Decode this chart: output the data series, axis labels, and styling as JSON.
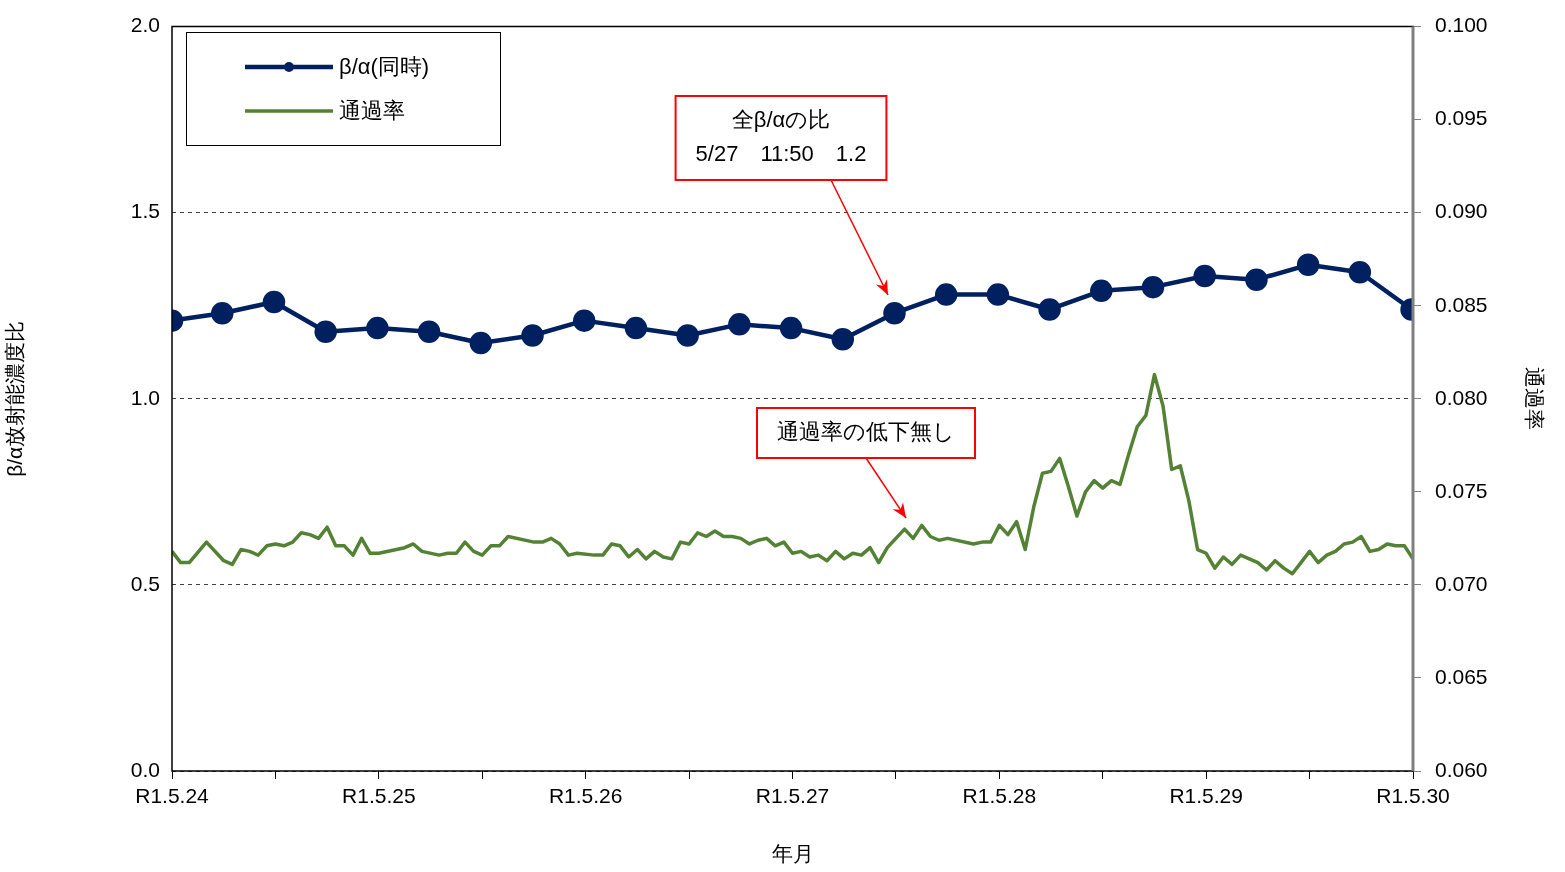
{
  "chart_data": {
    "type": "line",
    "xlabel": "年月",
    "ylabel": "β/α放射能濃度比",
    "y2label": "通過率",
    "xlim": [
      "--05-24T00:00",
      "--05-30T00:00"
    ],
    "xticks": [
      {
        "value": "--05-24T00:00",
        "label": "R1.5.24"
      },
      {
        "value": "--05-24T12:00",
        "label": null
      },
      {
        "value": "--05-25T00:00",
        "label": "R1.5.25"
      },
      {
        "value": "--05-25T12:00",
        "label": null
      },
      {
        "value": "--05-26T00:00",
        "label": "R1.5.26"
      },
      {
        "value": "--05-26T12:00",
        "label": null
      },
      {
        "value": "--05-27T00:00",
        "label": "R1.5.27"
      },
      {
        "value": "--05-27T12:00",
        "label": null
      },
      {
        "value": "--05-28T00:00",
        "label": "R1.5.28"
      },
      {
        "value": "--05-28T12:00",
        "label": null
      },
      {
        "value": "--05-29T00:00",
        "label": "R1.5.29"
      },
      {
        "value": "--05-29T12:00",
        "label": null
      },
      {
        "value": "--05-30T00:00",
        "label": "R1.5.30"
      }
    ],
    "ylim": [
      0,
      2
    ],
    "yticks": [
      {
        "value": 0,
        "label": "0.0"
      },
      {
        "value": 0.5,
        "label": "0.5"
      },
      {
        "value": 1,
        "label": "1.0"
      },
      {
        "value": 1.5,
        "label": "1.5"
      },
      {
        "value": 2,
        "label": "2.0"
      }
    ],
    "y2lim": [
      0.06,
      0.1
    ],
    "y2ticks": [
      {
        "value": 0.06,
        "label": "0.060"
      },
      {
        "value": 0.065,
        "label": "0.065"
      },
      {
        "value": 0.07,
        "label": "0.070"
      },
      {
        "value": 0.075,
        "label": "0.075"
      },
      {
        "value": 0.08,
        "label": "0.080"
      },
      {
        "value": 0.085,
        "label": "0.085"
      },
      {
        "value": 0.09,
        "label": "0.090"
      },
      {
        "value": 0.095,
        "label": "0.095"
      },
      {
        "value": 0.1,
        "label": "0.100"
      }
    ],
    "grid": "y",
    "legend": "top left",
    "line_style": "solid",
    "annotations": [
      "全β/αの比\n5/27　11:50　1.2",
      "通過率の低下無し"
    ],
    "series": [
      {
        "name": "β/α(同時)",
        "color": "#002060",
        "marker": "circle",
        "x": [
          "--05-24T00:00",
          "--05-24T05:50",
          "--05-24T11:50",
          "--05-24T17:50",
          "--05-24T23:50",
          "--05-25T05:50",
          "--05-25T11:50",
          "--05-25T17:50",
          "--05-25T23:50",
          "--05-26T05:50",
          "--05-26T11:50",
          "--05-26T17:50",
          "--05-26T23:50",
          "--05-27T05:50",
          "--05-27T11:50",
          "--05-27T17:50",
          "--05-27T23:50",
          "--05-28T05:50",
          "--05-28T11:50",
          "--05-28T17:50",
          "--05-28T23:50",
          "--05-29T05:50",
          "--05-29T11:50",
          "--05-29T17:50",
          "--05-29T23:50"
        ],
        "values": [
          1.21,
          1.23,
          1.26,
          1.18,
          1.19,
          1.18,
          1.15,
          1.17,
          1.21,
          1.19,
          1.17,
          1.2,
          1.19,
          1.16,
          1.23,
          1.28,
          1.28,
          1.24,
          1.29,
          1.3,
          1.33,
          1.32,
          1.36,
          1.34,
          1.24
        ]
      },
      {
        "name": "通過率",
        "color": "#548235",
        "marker": "none",
        "axis": "y2",
        "x": [
          "--05-24T00:00",
          "--05-24T01:00",
          "--05-24T02:00",
          "--05-24T04:00",
          "--05-24T06:00",
          "--05-24T07:00",
          "--05-24T08:00",
          "--05-24T09:00",
          "--05-24T10:00",
          "--05-24T11:00",
          "--05-24T12:00",
          "--05-24T13:00",
          "--05-24T14:00",
          "--05-24T15:00",
          "--05-24T16:00",
          "--05-24T17:00",
          "--05-24T18:00",
          "--05-24T19:00",
          "--05-24T20:00",
          "--05-24T21:00",
          "--05-24T22:00",
          "--05-24T23:00",
          "--05-25T00:00",
          "--05-25T03:00",
          "--05-25T04:00",
          "--05-25T05:00",
          "--05-25T07:00",
          "--05-25T08:00",
          "--05-25T09:00",
          "--05-25T10:00",
          "--05-25T11:00",
          "--05-25T12:00",
          "--05-25T13:00",
          "--05-25T14:00",
          "--05-25T15:00",
          "--05-25T18:00",
          "--05-25T19:00",
          "--05-25T20:00",
          "--05-25T21:00",
          "--05-25T22:00",
          "--05-25T23:00",
          "--05-26T01:00",
          "--05-26T02:00",
          "--05-26T03:00",
          "--05-26T04:00",
          "--05-26T05:00",
          "--05-26T06:00",
          "--05-26T07:00",
          "--05-26T08:00",
          "--05-26T09:00",
          "--05-26T10:00",
          "--05-26T11:00",
          "--05-26T12:00",
          "--05-26T13:00",
          "--05-26T14:00",
          "--05-26T15:00",
          "--05-26T16:00",
          "--05-26T17:00",
          "--05-26T18:00",
          "--05-26T19:00",
          "--05-26T20:00",
          "--05-26T21:00",
          "--05-26T22:00",
          "--05-26T23:00",
          "--05-27T00:00",
          "--05-27T01:00",
          "--05-27T02:00",
          "--05-27T03:00",
          "--05-27T04:00",
          "--05-27T05:00",
          "--05-27T06:00",
          "--05-27T07:00",
          "--05-27T08:00",
          "--05-27T09:00",
          "--05-27T10:00",
          "--05-27T11:00",
          "--05-27T13:00",
          "--05-27T14:00",
          "--05-27T15:00",
          "--05-27T16:00",
          "--05-27T17:00",
          "--05-27T18:00",
          "--05-27T21:00",
          "--05-27T22:00",
          "--05-27T23:00",
          "--05-28T00:00",
          "--05-28T01:00",
          "--05-28T02:00",
          "--05-28T03:00",
          "--05-28T04:00",
          "--05-28T05:00",
          "--05-28T06:00",
          "--05-28T07:00",
          "--05-28T08:00",
          "--05-28T09:00",
          "--05-28T10:00",
          "--05-28T11:00",
          "--05-28T12:00",
          "--05-28T13:00",
          "--05-28T14:00",
          "--05-28T15:00",
          "--05-28T16:00",
          "--05-28T17:00",
          "--05-28T18:00",
          "--05-28T19:00",
          "--05-28T20:00",
          "--05-28T21:00",
          "--05-28T22:00",
          "--05-28T23:00",
          "--05-29T00:00",
          "--05-29T01:00",
          "--05-29T02:00",
          "--05-29T03:00",
          "--05-29T04:00",
          "--05-29T05:00",
          "--05-29T06:00",
          "--05-29T07:00",
          "--05-29T08:00",
          "--05-29T09:00",
          "--05-29T10:00",
          "--05-29T11:00",
          "--05-29T12:00",
          "--05-29T13:00",
          "--05-29T14:00",
          "--05-29T15:00",
          "--05-29T16:00",
          "--05-29T17:00",
          "--05-29T18:00",
          "--05-29T19:00",
          "--05-29T20:00",
          "--05-29T21:00",
          "--05-29T22:00",
          "--05-29T23:00",
          "--05-30T00:00"
        ],
        "values": [
          0.0718,
          0.0712,
          0.0712,
          0.0723,
          0.0713,
          0.0711,
          0.0719,
          0.0718,
          0.0716,
          0.0721,
          0.0722,
          0.0721,
          0.0723,
          0.0728,
          0.0727,
          0.0725,
          0.0731,
          0.0721,
          0.0721,
          0.0716,
          0.0725,
          0.0717,
          0.0717,
          0.072,
          0.0722,
          0.0718,
          0.0716,
          0.0717,
          0.0717,
          0.0723,
          0.0718,
          0.0716,
          0.0721,
          0.0721,
          0.0726,
          0.0723,
          0.0723,
          0.0725,
          0.0722,
          0.0716,
          0.0717,
          0.0716,
          0.0716,
          0.0722,
          0.0721,
          0.0715,
          0.0719,
          0.0714,
          0.0718,
          0.0715,
          0.0714,
          0.0723,
          0.0722,
          0.0728,
          0.0726,
          0.0729,
          0.0726,
          0.0726,
          0.0725,
          0.0722,
          0.0724,
          0.0725,
          0.0721,
          0.0723,
          0.0717,
          0.0718,
          0.0715,
          0.0716,
          0.0713,
          0.0718,
          0.0714,
          0.0717,
          0.0716,
          0.072,
          0.0712,
          0.072,
          0.073,
          0.0725,
          0.0732,
          0.0726,
          0.0724,
          0.0725,
          0.0722,
          0.0723,
          0.0723,
          0.0732,
          0.0727,
          0.0734,
          0.0719,
          0.0742,
          0.076,
          0.0761,
          0.0768,
          0.0753,
          0.0737,
          0.075,
          0.0756,
          0.0752,
          0.0756,
          0.0754,
          0.077,
          0.0785,
          0.0791,
          0.0813,
          0.0796,
          0.0762,
          0.0764,
          0.0745,
          0.0719,
          0.0717,
          0.0709,
          0.0715,
          0.0711,
          0.0716,
          0.0714,
          0.0712,
          0.0708,
          0.0713,
          0.0709,
          0.0706,
          0.0712,
          0.0718,
          0.0712,
          0.0716,
          0.0718,
          0.0722,
          0.0723,
          0.0726,
          0.0718,
          0.0719,
          0.0722,
          0.0721,
          0.0721,
          0.0714
        ]
      }
    ]
  }
}
